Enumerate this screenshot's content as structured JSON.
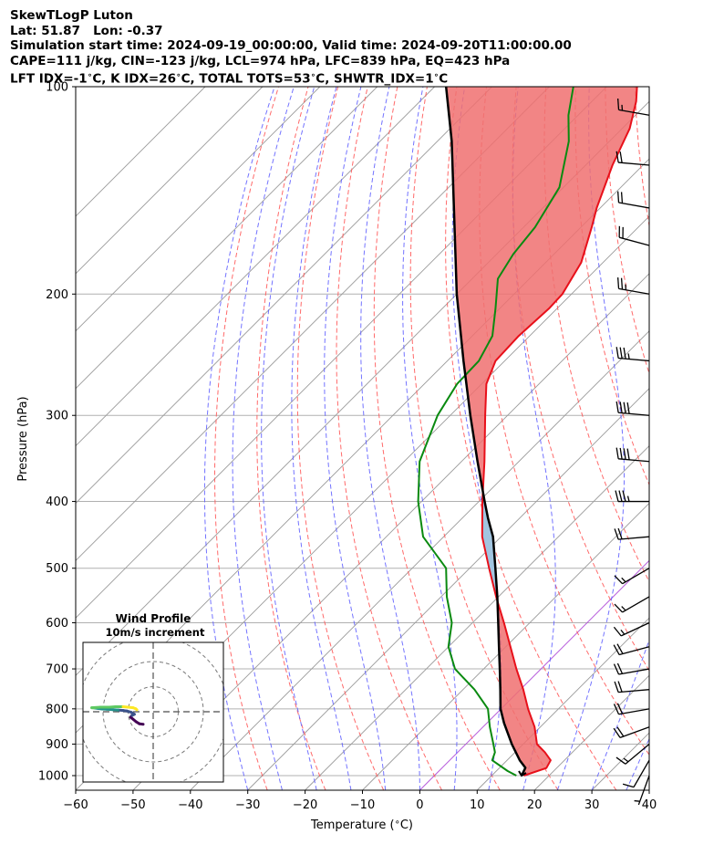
{
  "header": {
    "title": "SkewTLogP Luton",
    "location": "Lat: 51.87   Lon: -0.37",
    "times": "Simulation start time: 2024-09-19_00:00:00, Valid time: 2024-09-20T11:00:00.00",
    "params": "CAPE=111 j/kg, CIN=-123 j/kg, LCL=974 hPa, LFC=839 hPa, EQ=423 hPa",
    "indices": "LFT IDX=-1$^\\circ$C, K IDX=26$^\\circ$C, TOTAL TOTS=53$^\\circ$C, SHWTR_IDX=1$^\\circ$C"
  },
  "chart_data": {
    "type": "skewt",
    "xlabel": "Temperature ($^\\circ$C)",
    "ylabel": "Pressure (hPa)",
    "xlim": [
      -60,
      40
    ],
    "ylim": [
      1050,
      100
    ],
    "log_y": true,
    "grid": true,
    "x_ticks": [
      "−60",
      "−50",
      "−40",
      "−30",
      "−20",
      "−10",
      "0",
      "10",
      "20",
      "30",
      "40"
    ],
    "y_ticks": [
      "1000",
      "900",
      "800",
      "700",
      "600",
      "500",
      "400",
      "300",
      "200",
      "100"
    ],
    "pressure_ticks": [
      1000,
      900,
      800,
      700,
      600,
      500,
      400,
      300,
      200,
      100
    ],
    "temperature": {
      "name": "Temperature",
      "color": "#e8101a",
      "points": [
        [
          1000,
          15.6
        ],
        [
          975,
          18.2
        ],
        [
          950,
          17.6
        ],
        [
          925,
          15.2
        ],
        [
          900,
          12.4
        ],
        [
          850,
          9.0
        ],
        [
          800,
          4.7
        ],
        [
          750,
          0.5
        ],
        [
          700,
          -4.3
        ],
        [
          650,
          -9.2
        ],
        [
          600,
          -14.5
        ],
        [
          550,
          -20.4
        ],
        [
          500,
          -26.6
        ],
        [
          450,
          -33.3
        ],
        [
          400,
          -39.4
        ],
        [
          350,
          -46.0
        ],
        [
          300,
          -53.9
        ],
        [
          270,
          -59.2
        ],
        [
          250,
          -61.6
        ],
        [
          230,
          -61.9
        ],
        [
          210,
          -61.4
        ],
        [
          200,
          -61.6
        ],
        [
          180,
          -63.8
        ],
        [
          160,
          -68.1
        ],
        [
          150,
          -70.6
        ],
        [
          130,
          -75.3
        ],
        [
          115,
          -78.7
        ],
        [
          105,
          -82.3
        ],
        [
          100,
          -84.7
        ]
      ]
    },
    "dewpoint": {
      "name": "Dewpoint",
      "color": "#0a8a10",
      "points": [
        [
          1000,
          14.3
        ],
        [
          985,
          12.0
        ],
        [
          950,
          7.4
        ],
        [
          925,
          6.5
        ],
        [
          900,
          4.8
        ],
        [
          850,
          1.2
        ],
        [
          800,
          -2.3
        ],
        [
          750,
          -8.0
        ],
        [
          700,
          -15.0
        ],
        [
          650,
          -20.0
        ],
        [
          600,
          -23.6
        ],
        [
          550,
          -29.0
        ],
        [
          500,
          -34.1
        ],
        [
          450,
          -43.6
        ],
        [
          400,
          -50.6
        ],
        [
          350,
          -57.3
        ],
        [
          300,
          -62.2
        ],
        [
          270,
          -64.3
        ],
        [
          250,
          -64.5
        ],
        [
          230,
          -66.5
        ],
        [
          210,
          -70.7
        ],
        [
          190,
          -75.5
        ],
        [
          175,
          -77.1
        ],
        [
          160,
          -78.0
        ],
        [
          140,
          -80.7
        ],
        [
          120,
          -87.1
        ],
        [
          110,
          -91.7
        ],
        [
          100,
          -95.8
        ]
      ]
    },
    "parcel": {
      "name": "Parcel",
      "color": "#000000",
      "points": [
        [
          1000,
          15.2
        ],
        [
          974,
          14.5
        ],
        [
          950,
          12.2
        ],
        [
          900,
          8.0
        ],
        [
          839,
          3.0
        ],
        [
          800,
          -0.1
        ],
        [
          750,
          -3.5
        ],
        [
          700,
          -7.2
        ],
        [
          650,
          -11.2
        ],
        [
          600,
          -15.5
        ],
        [
          550,
          -20.2
        ],
        [
          500,
          -25.5
        ],
        [
          450,
          -31.4
        ],
        [
          423,
          -35.5
        ],
        [
          400,
          -39.0
        ],
        [
          350,
          -47.2
        ],
        [
          300,
          -56.5
        ],
        [
          250,
          -67.2
        ],
        [
          200,
          -80.0
        ],
        [
          150,
          -95.5
        ],
        [
          120,
          -107.5
        ],
        [
          100,
          -118.0
        ]
      ]
    },
    "cape_fill_color": "#a2c5e0",
    "cin_fill_color": "#f07070",
    "dry_adiabat_color": "#ff5a5a",
    "moist_adiabat_color": "#5a5aff",
    "mixing_ratio_color": "#5a5aff",
    "isotherm_color": "#9a9a9a",
    "zero_isotherm_color": "#b04cd8",
    "wind_barbs": [
      {
        "p": 1000,
        "speed_kt": 5,
        "dir": 200
      },
      {
        "p": 950,
        "speed_kt": 10,
        "dir": 210
      },
      {
        "p": 900,
        "speed_kt": 15,
        "dir": 230
      },
      {
        "p": 850,
        "speed_kt": 20,
        "dir": 250
      },
      {
        "p": 800,
        "speed_kt": 20,
        "dir": 260
      },
      {
        "p": 750,
        "speed_kt": 20,
        "dir": 265
      },
      {
        "p": 700,
        "speed_kt": 20,
        "dir": 260
      },
      {
        "p": 650,
        "speed_kt": 20,
        "dir": 255
      },
      {
        "p": 600,
        "speed_kt": 15,
        "dir": 245
      },
      {
        "p": 550,
        "speed_kt": 15,
        "dir": 240
      },
      {
        "p": 500,
        "speed_kt": 15,
        "dir": 240
      },
      {
        "p": 450,
        "speed_kt": 20,
        "dir": 265
      },
      {
        "p": 400,
        "speed_kt": 35,
        "dir": 270
      },
      {
        "p": 350,
        "speed_kt": 40,
        "dir": 275
      },
      {
        "p": 300,
        "speed_kt": 40,
        "dir": 275
      },
      {
        "p": 250,
        "speed_kt": 35,
        "dir": 275
      },
      {
        "p": 200,
        "speed_kt": 25,
        "dir": 280
      },
      {
        "p": 170,
        "speed_kt": 20,
        "dir": 285
      },
      {
        "p": 150,
        "speed_kt": 20,
        "dir": 280
      },
      {
        "p": 130,
        "speed_kt": 20,
        "dir": 275
      },
      {
        "p": 110,
        "speed_kt": 15,
        "dir": 280
      }
    ],
    "hodograph": {
      "title": "Wind Profile",
      "subtitle": "10m/s increment",
      "rings_ms": [
        10,
        20,
        30
      ],
      "colormap": [
        "#440154",
        "#3b528b",
        "#21918c",
        "#5ec962",
        "#fde725"
      ],
      "points": [
        [
          -4.0,
          -5.0
        ],
        [
          -5.5,
          -4.8
        ],
        [
          -6.8,
          -4.0
        ],
        [
          -8.0,
          -3.0
        ],
        [
          -9.0,
          -2.2
        ],
        [
          -8.5,
          -1.5
        ],
        [
          -7.5,
          -1.0
        ],
        [
          -8.8,
          -0.2
        ],
        [
          -10.5,
          0.3
        ],
        [
          -12.0,
          0.5
        ],
        [
          -14.0,
          0.7
        ],
        [
          -16.0,
          0.8
        ],
        [
          -18.5,
          1.0
        ],
        [
          -20.5,
          1.1
        ],
        [
          -22.0,
          1.3
        ],
        [
          -23.5,
          1.5
        ],
        [
          -24.5,
          1.6
        ],
        [
          -21.0,
          1.8
        ],
        [
          -17.5,
          1.8
        ],
        [
          -15.0,
          2.0
        ],
        [
          -12.0,
          2.0
        ],
        [
          -10.0,
          1.8
        ],
        [
          -8.0,
          1.6
        ],
        [
          -7.0,
          1.2
        ],
        [
          -6.5,
          0.8
        ]
      ]
    }
  }
}
